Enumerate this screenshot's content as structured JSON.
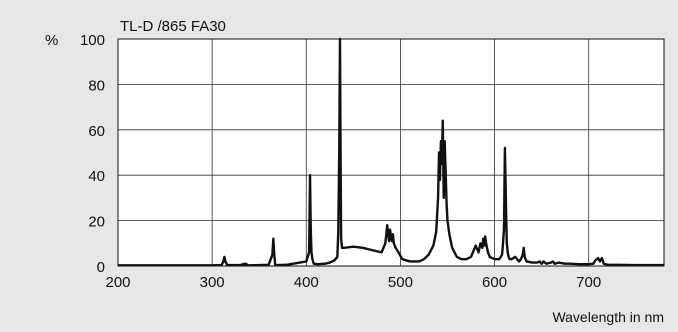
{
  "chart_data": {
    "type": "line",
    "title": "TL-D /865 FA30",
    "ylabel": "%",
    "xlabel": "Wavelength in nm",
    "xlim": [
      200,
      780
    ],
    "ylim": [
      0,
      100
    ],
    "grid": true,
    "x_ticks": [
      200,
      300,
      400,
      500,
      600,
      700
    ],
    "y_ticks": [
      0,
      20,
      40,
      60,
      80,
      100
    ],
    "series": [
      {
        "x": [
          200,
          300,
          310,
          312,
          313,
          314,
          316,
          330,
          334,
          335,
          336,
          338,
          360,
          364,
          365,
          366,
          367,
          369,
          380,
          400,
          403,
          404,
          404.7,
          405.5,
          406.5,
          408,
          412,
          420,
          425,
          430,
          433,
          434,
          435,
          435.8,
          436.5,
          437,
          438,
          440,
          450,
          460,
          470,
          480,
          484,
          486,
          487,
          488,
          489,
          490,
          491,
          492,
          493,
          495,
          498,
          502,
          510,
          520,
          525,
          530,
          535,
          538,
          540,
          541,
          542,
          543,
          544,
          545,
          546,
          547,
          548,
          549,
          550,
          552,
          555,
          560,
          565,
          570,
          575,
          578,
          580,
          583,
          585,
          587,
          588,
          589,
          590,
          591,
          592,
          593,
          595,
          600,
          605,
          608,
          609,
          610,
          611,
          612,
          613,
          614,
          615,
          616,
          618,
          622,
          626,
          628,
          630,
          631,
          632,
          634,
          640,
          645,
          648,
          650,
          652,
          655,
          660,
          662,
          664,
          668,
          675,
          680,
          690,
          700,
          705,
          707,
          710,
          712,
          714,
          716,
          720,
          730,
          750,
          780
        ],
        "y": [
          0.3,
          0.3,
          0.4,
          2,
          4,
          2,
          0.4,
          0.4,
          1,
          0.3,
          1,
          0.3,
          0.5,
          5,
          12,
          5,
          0.5,
          0.4,
          0.6,
          2,
          6,
          40,
          18,
          6,
          3,
          1,
          0.8,
          1,
          1.5,
          2.5,
          4,
          15,
          50,
          100,
          45,
          12,
          8,
          8,
          8.5,
          8,
          7,
          6,
          10,
          18,
          14,
          11,
          16,
          13,
          11,
          14,
          10,
          8,
          6,
          3,
          2,
          2,
          3,
          5,
          9,
          15,
          30,
          50,
          38,
          55,
          45,
          64,
          30,
          55,
          42,
          28,
          20,
          14,
          8,
          4,
          3,
          3,
          4,
          7,
          9,
          6,
          10,
          8,
          12,
          9,
          13,
          10,
          8,
          6,
          4,
          3,
          3,
          5,
          10,
          16,
          52,
          30,
          10,
          6,
          4,
          3,
          3,
          4,
          2,
          3,
          5,
          8,
          4,
          2,
          1.5,
          1.5,
          2,
          1,
          2,
          1,
          1.5,
          2,
          1,
          1.5,
          1,
          1,
          0.8,
          0.8,
          1,
          2.5,
          3.5,
          2,
          3.5,
          1,
          0.6,
          0.5,
          0.4,
          0.4
        ]
      }
    ]
  }
}
